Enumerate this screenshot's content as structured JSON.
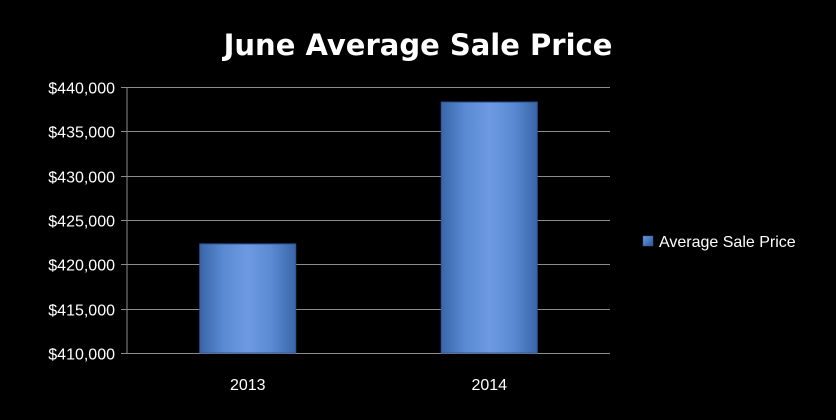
{
  "chart_data": {
    "type": "bar",
    "title": "June Average Sale Price",
    "xlabel": "",
    "ylabel": "",
    "categories": [
      "2013",
      "2014"
    ],
    "series": [
      {
        "name": "Average Sale Price",
        "values": [
          422300,
          438300
        ],
        "color": "#4f81bd"
      }
    ],
    "ylim": [
      410000,
      440000
    ],
    "yticks": [
      410000,
      415000,
      420000,
      425000,
      430000,
      435000,
      440000
    ],
    "ytick_labels": [
      "$410,000",
      "$415,000",
      "$420,000",
      "$425,000",
      "$430,000",
      "$435,000",
      "$440,000"
    ],
    "grid": true,
    "legend_position": "right",
    "colors": {
      "background": "#000000",
      "text": "#ffffff",
      "gridline": "#8c8c8c",
      "bar": "#4f81bd"
    }
  }
}
